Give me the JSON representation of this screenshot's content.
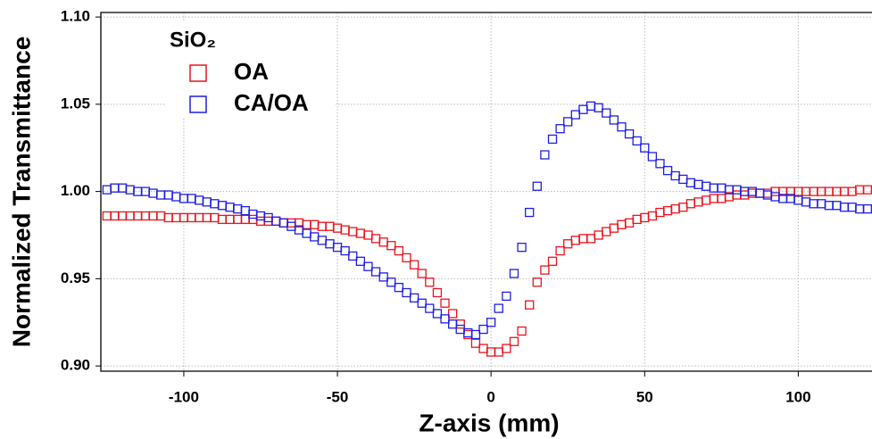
{
  "chart_data": {
    "type": "scatter",
    "xlabel": "Z-axis (mm)",
    "ylabel": "Normalized Transmittance",
    "legend_title": "SiO₂",
    "legend": "upper left",
    "grid": true,
    "xlim": [
      -127,
      124
    ],
    "ylim": [
      0.897,
      1.1026
    ],
    "xticks": [
      -100,
      -50,
      0,
      50,
      100
    ],
    "yticks": [
      {
        "value": 0.9,
        "label": "0.90"
      },
      {
        "value": 0.95,
        "label": "0.95"
      },
      {
        "value": 1.0,
        "label": "1.00"
      },
      {
        "value": 1.05,
        "label": "1.05"
      },
      {
        "value": 1.1,
        "label": "1.10"
      }
    ],
    "x": [
      -125,
      -122.5,
      -120,
      -117.5,
      -115,
      -112.5,
      -110,
      -107.5,
      -105,
      -102.5,
      -100,
      -97.5,
      -95,
      -92.5,
      -90,
      -87.5,
      -85,
      -82.5,
      -80,
      -77.5,
      -75,
      -72.5,
      -70,
      -67.5,
      -65,
      -62.5,
      -60,
      -57.5,
      -55,
      -52.5,
      -50,
      -47.5,
      -45,
      -42.5,
      -40,
      -37.5,
      -35,
      -32.5,
      -30,
      -27.5,
      -25,
      -22.5,
      -20,
      -17.5,
      -15,
      -12.5,
      -10,
      -7.5,
      -5,
      -2.5,
      0,
      2.5,
      5,
      7.5,
      10,
      12.5,
      15,
      17.5,
      20,
      22.5,
      25,
      27.5,
      30,
      32.5,
      35,
      37.5,
      40,
      42.5,
      45,
      47.5,
      50,
      52.5,
      55,
      57.5,
      60,
      62.5,
      65,
      67.5,
      70,
      72.5,
      75,
      77.5,
      80,
      82.5,
      85,
      87.5,
      90,
      92.5,
      95,
      97.5,
      100,
      102.5,
      105,
      107.5,
      110,
      112.5,
      115,
      117.5,
      120,
      122.5
    ],
    "series": [
      {
        "name": "OA",
        "color": "#e8141c",
        "values": [
          0.986,
          0.986,
          0.986,
          0.986,
          0.986,
          0.986,
          0.986,
          0.986,
          0.985,
          0.985,
          0.985,
          0.985,
          0.985,
          0.985,
          0.985,
          0.984,
          0.984,
          0.984,
          0.984,
          0.984,
          0.983,
          0.983,
          0.983,
          0.982,
          0.982,
          0.982,
          0.981,
          0.981,
          0.98,
          0.98,
          0.979,
          0.978,
          0.977,
          0.976,
          0.975,
          0.973,
          0.971,
          0.969,
          0.966,
          0.962,
          0.958,
          0.953,
          0.948,
          0.942,
          0.936,
          0.93,
          0.924,
          0.918,
          0.913,
          0.91,
          0.908,
          0.908,
          0.91,
          0.914,
          0.92,
          0.935,
          0.948,
          0.955,
          0.96,
          0.966,
          0.97,
          0.972,
          0.973,
          0.973,
          0.975,
          0.977,
          0.979,
          0.981,
          0.982,
          0.984,
          0.985,
          0.986,
          0.988,
          0.989,
          0.99,
          0.991,
          0.993,
          0.994,
          0.995,
          0.996,
          0.996,
          0.997,
          0.998,
          0.998,
          0.999,
          0.999,
          0.999,
          1.0,
          1.0,
          1.0,
          1.0,
          1.0,
          1.0,
          1.0,
          1.0,
          1.0,
          1.0,
          1.0,
          1.001,
          1.001
        ]
      },
      {
        "name": "CA/OA",
        "color": "#1f1fe0",
        "values": [
          1.001,
          1.002,
          1.002,
          1.001,
          1.0,
          1.0,
          0.999,
          0.998,
          0.998,
          0.997,
          0.996,
          0.996,
          0.995,
          0.994,
          0.993,
          0.992,
          0.991,
          0.99,
          0.989,
          0.987,
          0.986,
          0.985,
          0.983,
          0.982,
          0.98,
          0.978,
          0.976,
          0.974,
          0.972,
          0.97,
          0.968,
          0.966,
          0.963,
          0.96,
          0.957,
          0.954,
          0.951,
          0.948,
          0.945,
          0.942,
          0.939,
          0.936,
          0.933,
          0.93,
          0.927,
          0.924,
          0.921,
          0.919,
          0.918,
          0.921,
          0.925,
          0.933,
          0.94,
          0.953,
          0.968,
          0.988,
          1.003,
          1.021,
          1.03,
          1.036,
          1.04,
          1.044,
          1.047,
          1.049,
          1.048,
          1.045,
          1.041,
          1.037,
          1.033,
          1.029,
          1.025,
          1.02,
          1.016,
          1.012,
          1.009,
          1.007,
          1.005,
          1.004,
          1.003,
          1.002,
          1.002,
          1.001,
          1.001,
          1.0,
          1.0,
          0.999,
          0.998,
          0.997,
          0.996,
          0.996,
          0.995,
          0.994,
          0.993,
          0.993,
          0.992,
          0.992,
          0.991,
          0.991,
          0.99,
          0.99
        ]
      }
    ]
  }
}
